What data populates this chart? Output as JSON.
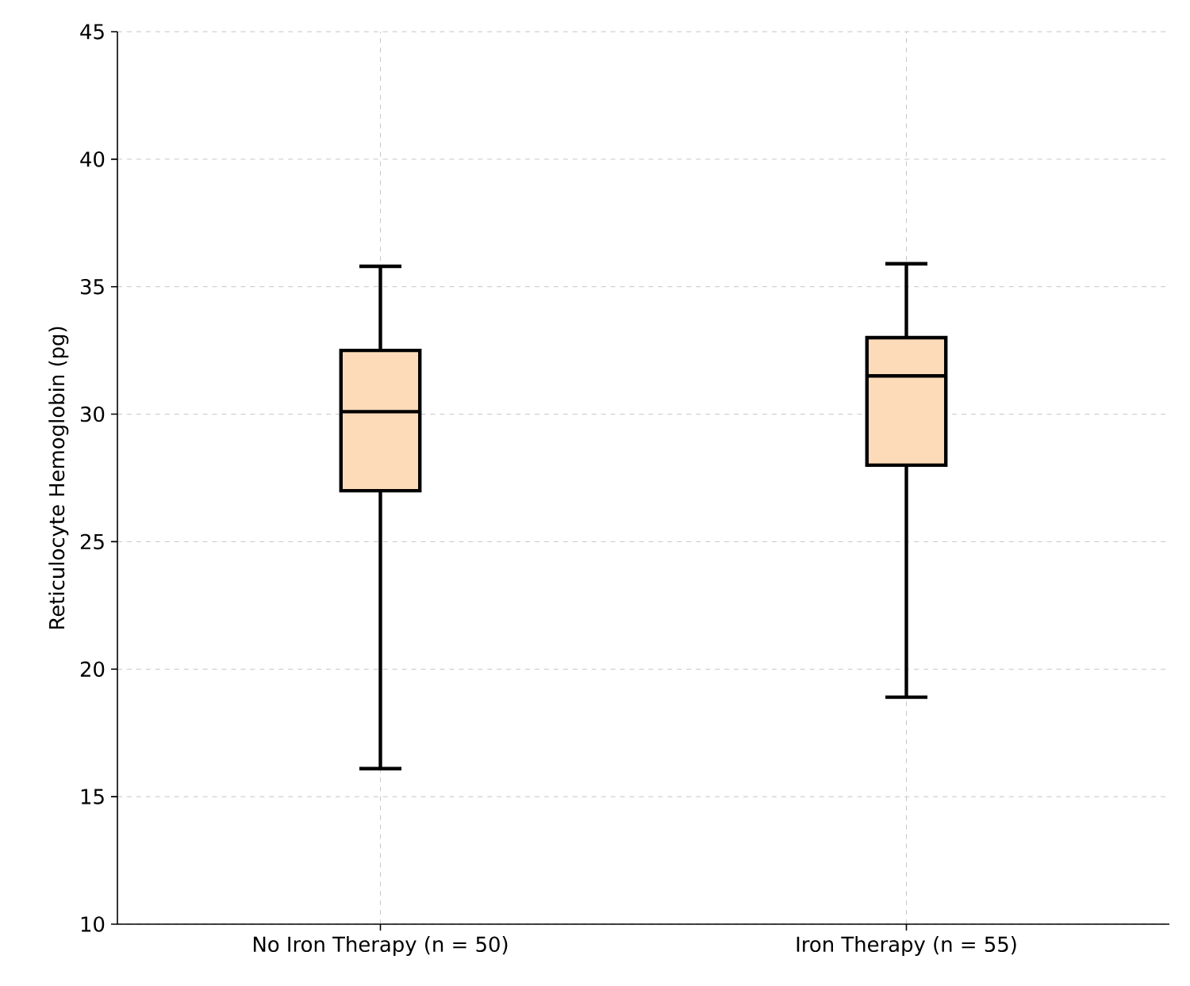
{
  "chart_data": {
    "type": "box",
    "ylabel": "Reticulocyte Hemoglobin (pg)",
    "categories": [
      "No Iron Therapy (n = 50)",
      "Iron Therapy (n = 55)"
    ],
    "boxes": [
      {
        "low": 16.1,
        "q1": 27.0,
        "median": 30.1,
        "q3": 32.5,
        "high": 35.8
      },
      {
        "low": 18.9,
        "q1": 28.0,
        "median": 31.5,
        "q3": 33.0,
        "high": 35.9
      }
    ],
    "color": "#fddbb8",
    "ylim": [
      10,
      45
    ],
    "yticks": [
      10,
      15,
      20,
      25,
      30,
      35,
      40,
      45
    ],
    "grid": true
  }
}
